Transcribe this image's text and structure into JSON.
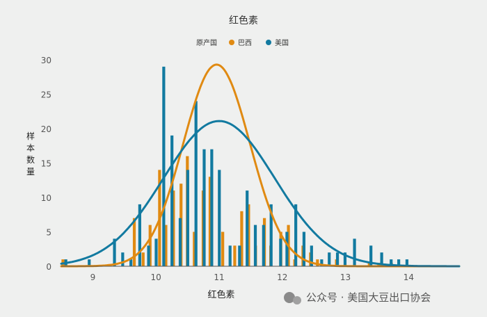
{
  "chart_data": {
    "type": "bar",
    "title": "红色素",
    "xlabel": "红色素",
    "ylabel": "样本数量",
    "xlim": [
      8.5,
      14.8
    ],
    "ylim": [
      0,
      30
    ],
    "x_ticks": [
      9,
      10,
      11,
      12,
      13,
      14
    ],
    "y_ticks": [
      0,
      5,
      10,
      15,
      20,
      25,
      30
    ],
    "legend": {
      "title": "原产国",
      "position": "top-center"
    },
    "series": [
      {
        "name": "巴西",
        "color": "#e08a12",
        "bars": [
          [
            8.55,
            1
          ],
          [
            9.68,
            7
          ],
          [
            9.82,
            2
          ],
          [
            9.93,
            6
          ],
          [
            10.08,
            14
          ],
          [
            10.18,
            6
          ],
          [
            10.3,
            11
          ],
          [
            10.42,
            12
          ],
          [
            10.52,
            16
          ],
          [
            10.63,
            5
          ],
          [
            10.77,
            11
          ],
          [
            10.88,
            13
          ],
          [
            11.08,
            5
          ],
          [
            11.27,
            3
          ],
          [
            11.38,
            8
          ],
          [
            11.49,
            9
          ],
          [
            11.6,
            3
          ],
          [
            11.74,
            7
          ],
          [
            11.84,
            3
          ],
          [
            12.0,
            5
          ],
          [
            12.12,
            6
          ],
          [
            12.22,
            1
          ],
          [
            12.35,
            3
          ],
          [
            12.47,
            2
          ],
          [
            12.58,
            1
          ],
          [
            12.88,
            1
          ],
          [
            13.4,
            0.5
          ],
          [
            13.55,
            0.5
          ],
          [
            13.75,
            0.5
          ]
        ],
        "curve": {
          "mean": 10.96,
          "sd": 0.53,
          "peak": 29.3
        }
      },
      {
        "name": "美国",
        "color": "#127aa0",
        "bars": [
          [
            8.55,
            1
          ],
          [
            8.92,
            1
          ],
          [
            9.32,
            4
          ],
          [
            9.45,
            2
          ],
          [
            9.58,
            1
          ],
          [
            9.72,
            9
          ],
          [
            9.86,
            3
          ],
          [
            9.98,
            4
          ],
          [
            10.1,
            29
          ],
          [
            10.23,
            19
          ],
          [
            10.36,
            7
          ],
          [
            10.48,
            14
          ],
          [
            10.61,
            24
          ],
          [
            10.74,
            17
          ],
          [
            10.86,
            17
          ],
          [
            10.98,
            14
          ],
          [
            11.15,
            3
          ],
          [
            11.3,
            3
          ],
          [
            11.42,
            11
          ],
          [
            11.55,
            6
          ],
          [
            11.68,
            6
          ],
          [
            11.8,
            9
          ],
          [
            11.95,
            4
          ],
          [
            12.05,
            5
          ],
          [
            12.19,
            9
          ],
          [
            12.32,
            5
          ],
          [
            12.44,
            3
          ],
          [
            12.6,
            1
          ],
          [
            12.72,
            2
          ],
          [
            12.85,
            2
          ],
          [
            12.97,
            2
          ],
          [
            13.12,
            4
          ],
          [
            13.38,
            3
          ],
          [
            13.55,
            2
          ],
          [
            13.7,
            1
          ],
          [
            13.82,
            1
          ],
          [
            13.95,
            1
          ]
        ],
        "curve": {
          "mean": 11.0,
          "sd": 0.88,
          "peak": 21.1
        }
      }
    ]
  },
  "watermark": "公众号 · 美国大豆出口协会"
}
